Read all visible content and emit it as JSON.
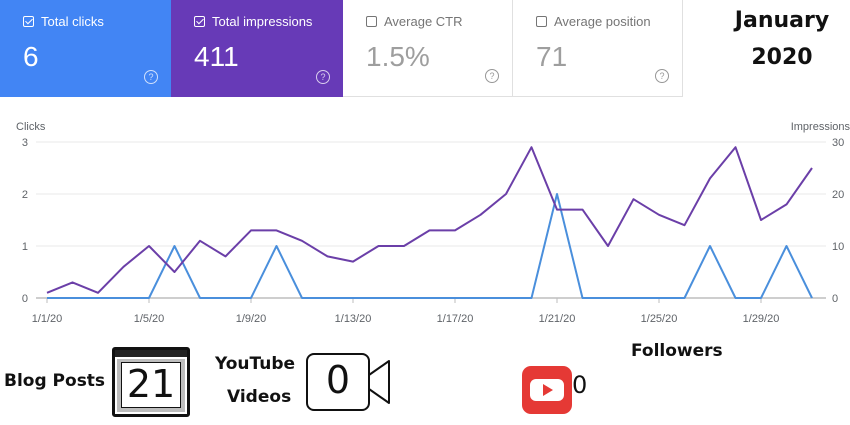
{
  "metrics": [
    {
      "key": "clicks",
      "label": "Total clicks",
      "value": "6",
      "checked": true
    },
    {
      "key": "impressions",
      "label": "Total impressions",
      "value": "411",
      "checked": true
    },
    {
      "key": "ctr",
      "label": "Average CTR",
      "value": "1.5%",
      "checked": false
    },
    {
      "key": "position",
      "label": "Average position",
      "value": "71",
      "checked": false
    }
  ],
  "month_label": {
    "line1": "January",
    "line2": "2020"
  },
  "chart_data": {
    "type": "line",
    "x": [
      "1/1/20",
      "1/2/20",
      "1/3/20",
      "1/4/20",
      "1/5/20",
      "1/6/20",
      "1/7/20",
      "1/8/20",
      "1/9/20",
      "1/10/20",
      "1/11/20",
      "1/12/20",
      "1/13/20",
      "1/14/20",
      "1/15/20",
      "1/16/20",
      "1/17/20",
      "1/18/20",
      "1/19/20",
      "1/20/20",
      "1/21/20",
      "1/22/20",
      "1/23/20",
      "1/24/20",
      "1/25/20",
      "1/26/20",
      "1/27/20",
      "1/28/20",
      "1/29/20",
      "1/30/20",
      "1/31/20"
    ],
    "x_tick_labels": [
      "1/1/20",
      "1/5/20",
      "1/9/20",
      "1/13/20",
      "1/17/20",
      "1/21/20",
      "1/25/20",
      "1/29/20"
    ],
    "series": [
      {
        "name": "Clicks",
        "axis": "left",
        "color": "#4a8fdc",
        "values": [
          0,
          0,
          0,
          0,
          0,
          1,
          0,
          0,
          0,
          1,
          0,
          0,
          0,
          0,
          0,
          0,
          0,
          0,
          0,
          0,
          2,
          0,
          0,
          0,
          0,
          0,
          1,
          0,
          0,
          1,
          0
        ]
      },
      {
        "name": "Impressions",
        "axis": "right",
        "color": "#6b3fa8",
        "values": [
          1,
          3,
          1,
          6,
          10,
          5,
          11,
          8,
          13,
          13,
          11,
          8,
          7,
          10,
          10,
          13,
          13,
          16,
          20,
          29,
          17,
          17,
          10,
          19,
          16,
          14,
          23,
          29,
          15,
          18,
          25
        ]
      }
    ],
    "ylabel": "Clicks",
    "y2label": "Impressions",
    "ylim": [
      0,
      3
    ],
    "y2lim": [
      0,
      30
    ],
    "yticks": [
      "0",
      "1",
      "2",
      "3"
    ],
    "y2ticks": [
      "0",
      "10",
      "20",
      "30"
    ],
    "grid": true
  },
  "stats": {
    "blog_label": "Blog Posts",
    "blog_value": "21",
    "youtube_label_1": "YouTube",
    "youtube_label_2": "Videos",
    "youtube_value": "0",
    "followers_label": "Followers",
    "followers_value": "0"
  }
}
